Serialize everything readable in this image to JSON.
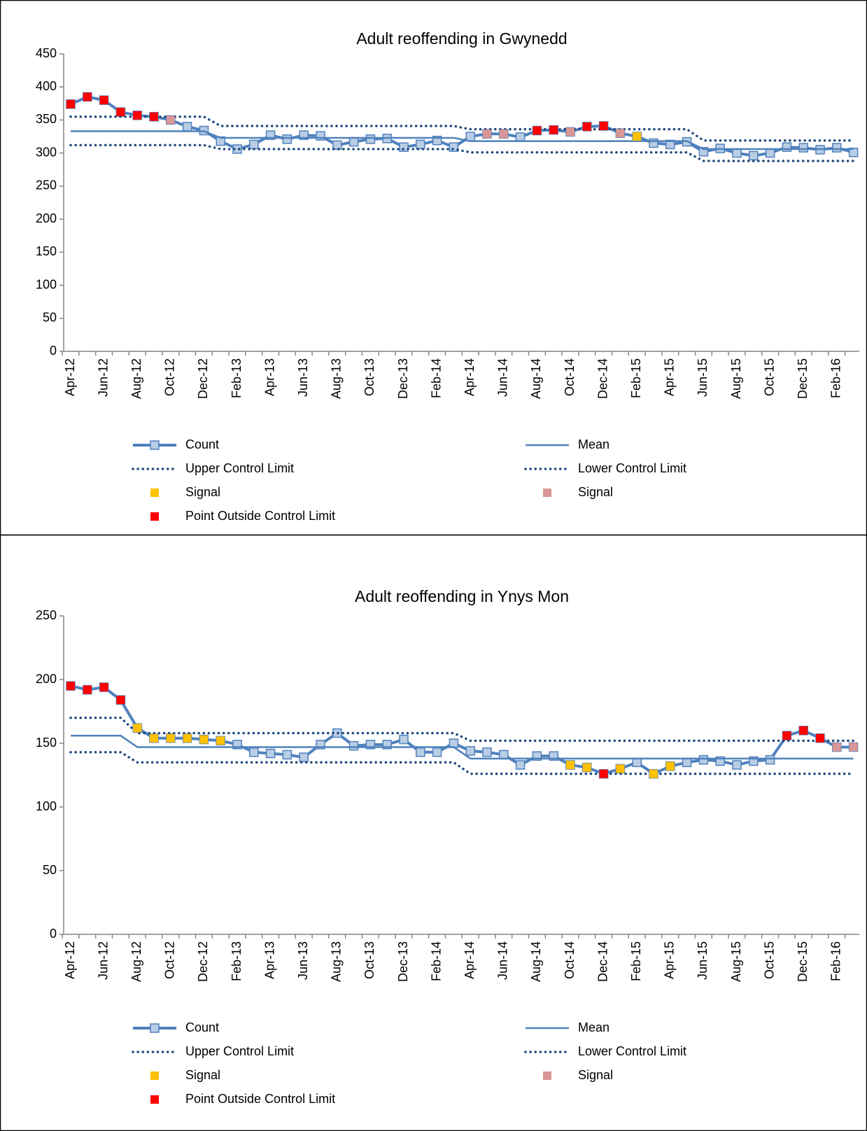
{
  "chart_data": [
    {
      "type": "line",
      "title": "Adult reoffending in Gwynedd",
      "categories": [
        "Apr-12",
        null,
        "Jun-12",
        null,
        "Aug-12",
        null,
        "Oct-12",
        null,
        "Dec-12",
        null,
        "Feb-13",
        null,
        "Apr-13",
        null,
        "Jun-13",
        null,
        "Aug-13",
        null,
        "Oct-13",
        null,
        "Dec-13",
        null,
        "Feb-14",
        null,
        "Apr-14",
        null,
        "Jun-14",
        null,
        "Aug-14",
        null,
        "Oct-14",
        null,
        "Dec-14",
        null,
        "Feb-15",
        null,
        "Apr-15",
        null,
        "Jun-15",
        null,
        "Aug-15",
        null,
        "Oct-15",
        null,
        "Dec-15",
        null,
        "Feb-16",
        null
      ],
      "ylim": [
        0,
        450
      ],
      "yticks": [
        0,
        50,
        100,
        150,
        200,
        250,
        300,
        350,
        400,
        450
      ],
      "grid": false,
      "series": [
        {
          "name": "Count",
          "color": "#4f81bd",
          "marker_color": "#b9cde5",
          "line": "solid",
          "marker": true,
          "values": [
            374,
            385,
            380,
            362,
            357,
            355,
            350,
            340,
            334,
            318,
            306,
            313,
            327,
            321,
            327,
            326,
            312,
            317,
            321,
            322,
            309,
            313,
            319,
            309,
            325,
            329,
            329,
            324,
            334,
            335,
            332,
            340,
            341,
            330,
            325,
            315,
            313,
            317,
            302,
            307,
            300,
            296,
            300,
            309,
            308,
            305,
            308,
            301
          ]
        },
        {
          "name": "Mean",
          "color": "#4f81bd",
          "line": "solid",
          "marker": false,
          "values": [
            333,
            333,
            333,
            333,
            333,
            333,
            333,
            333,
            333,
            323,
            323,
            323,
            323,
            323,
            323,
            323,
            323,
            323,
            323,
            323,
            323,
            323,
            323,
            323,
            318,
            318,
            318,
            318,
            318,
            318,
            318,
            318,
            318,
            318,
            318,
            318,
            318,
            318,
            306,
            306,
            306,
            306,
            306,
            306,
            306,
            306,
            306,
            306
          ]
        },
        {
          "name": "Upper Control Limit",
          "color": "#1f497d",
          "line": "dotted",
          "marker": false,
          "values": [
            355,
            355,
            355,
            355,
            355,
            355,
            355,
            355,
            355,
            341,
            341,
            341,
            341,
            341,
            341,
            341,
            341,
            341,
            341,
            341,
            341,
            341,
            341,
            341,
            336,
            336,
            336,
            336,
            336,
            336,
            336,
            336,
            336,
            336,
            336,
            336,
            336,
            336,
            319,
            319,
            319,
            319,
            319,
            319,
            319,
            319,
            319,
            319
          ]
        },
        {
          "name": "Lower Control Limit",
          "color": "#1f497d",
          "line": "dotted",
          "marker": false,
          "values": [
            312,
            312,
            312,
            312,
            312,
            312,
            312,
            312,
            312,
            306,
            306,
            306,
            306,
            306,
            306,
            306,
            306,
            306,
            306,
            306,
            306,
            306,
            306,
            306,
            301,
            301,
            301,
            301,
            301,
            301,
            301,
            301,
            301,
            301,
            301,
            301,
            301,
            301,
            288,
            288,
            288,
            288,
            288,
            288,
            288,
            288,
            288,
            288
          ]
        },
        {
          "name": "Signal",
          "color": "#ffc000",
          "line": "none",
          "marker": true,
          "values": [
            null,
            null,
            null,
            null,
            null,
            null,
            null,
            null,
            null,
            null,
            null,
            null,
            null,
            null,
            null,
            null,
            null,
            null,
            null,
            null,
            null,
            null,
            null,
            null,
            null,
            null,
            null,
            null,
            null,
            null,
            null,
            null,
            null,
            null,
            325,
            null,
            null,
            null,
            null,
            null,
            null,
            null,
            null,
            null,
            null,
            null,
            null,
            null
          ]
        },
        {
          "name": "Signal",
          "color": "#d99694",
          "line": "none",
          "marker": true,
          "values": [
            null,
            null,
            null,
            null,
            null,
            null,
            350,
            null,
            null,
            null,
            null,
            null,
            null,
            null,
            null,
            null,
            null,
            null,
            null,
            null,
            null,
            null,
            null,
            null,
            null,
            329,
            329,
            null,
            null,
            null,
            332,
            null,
            null,
            330,
            null,
            null,
            null,
            null,
            null,
            null,
            null,
            null,
            null,
            null,
            null,
            null,
            null,
            null
          ]
        },
        {
          "name": "Point Outside Control Limit",
          "color": "#ff0000",
          "line": "none",
          "marker": true,
          "values": [
            374,
            385,
            380,
            362,
            357,
            355,
            null,
            null,
            null,
            null,
            null,
            null,
            null,
            null,
            null,
            null,
            null,
            null,
            null,
            null,
            null,
            null,
            null,
            null,
            null,
            null,
            null,
            null,
            334,
            335,
            null,
            340,
            341,
            null,
            null,
            null,
            null,
            null,
            null,
            null,
            null,
            null,
            null,
            null,
            null,
            null,
            null,
            null
          ]
        }
      ]
    },
    {
      "type": "line",
      "title": "Adult reoffending in Ynys Mon",
      "categories": [
        "Apr-12",
        null,
        "Jun-12",
        null,
        "Aug-12",
        null,
        "Oct-12",
        null,
        "Dec-12",
        null,
        "Feb-13",
        null,
        "Apr-13",
        null,
        "Jun-13",
        null,
        "Aug-13",
        null,
        "Oct-13",
        null,
        "Dec-13",
        null,
        "Feb-14",
        null,
        "Apr-14",
        null,
        "Jun-14",
        null,
        "Aug-14",
        null,
        "Oct-14",
        null,
        "Dec-14",
        null,
        "Feb-15",
        null,
        "Apr-15",
        null,
        "Jun-15",
        null,
        "Aug-15",
        null,
        "Oct-15",
        null,
        "Dec-15",
        null,
        "Feb-16",
        null
      ],
      "ylim": [
        0,
        250
      ],
      "yticks": [
        0,
        50,
        100,
        150,
        200,
        250
      ],
      "grid": false,
      "series": [
        {
          "name": "Count",
          "color": "#4f81bd",
          "marker_color": "#b9cde5",
          "line": "solid",
          "marker": true,
          "values": [
            195,
            192,
            194,
            184,
            162,
            154,
            154,
            154,
            153,
            152,
            149,
            143,
            142,
            141,
            139,
            149,
            158,
            148,
            149,
            149,
            153,
            143,
            143,
            150,
            144,
            143,
            141,
            133,
            140,
            140,
            133,
            131,
            126,
            130,
            135,
            126,
            132,
            135,
            137,
            136,
            133,
            136,
            137,
            156,
            160,
            154,
            147,
            147
          ]
        },
        {
          "name": "Mean",
          "color": "#4f81bd",
          "line": "solid",
          "marker": false,
          "values": [
            156,
            156,
            156,
            156,
            147,
            147,
            147,
            147,
            147,
            147,
            147,
            147,
            147,
            147,
            147,
            147,
            147,
            147,
            147,
            147,
            147,
            147,
            147,
            147,
            138,
            138,
            138,
            138,
            138,
            138,
            138,
            138,
            138,
            138,
            138,
            138,
            138,
            138,
            138,
            138,
            138,
            138,
            138,
            138,
            138,
            138,
            138,
            138
          ]
        },
        {
          "name": "Upper Control Limit",
          "color": "#1f497d",
          "line": "dotted",
          "marker": false,
          "values": [
            170,
            170,
            170,
            170,
            158,
            158,
            158,
            158,
            158,
            158,
            158,
            158,
            158,
            158,
            158,
            158,
            158,
            158,
            158,
            158,
            158,
            158,
            158,
            158,
            152,
            152,
            152,
            152,
            152,
            152,
            152,
            152,
            152,
            152,
            152,
            152,
            152,
            152,
            152,
            152,
            152,
            152,
            152,
            152,
            152,
            152,
            152,
            152
          ]
        },
        {
          "name": "Lower Control Limit",
          "color": "#1f497d",
          "line": "dotted",
          "marker": false,
          "values": [
            143,
            143,
            143,
            143,
            135,
            135,
            135,
            135,
            135,
            135,
            135,
            135,
            135,
            135,
            135,
            135,
            135,
            135,
            135,
            135,
            135,
            135,
            135,
            135,
            126,
            126,
            126,
            126,
            126,
            126,
            126,
            126,
            126,
            126,
            126,
            126,
            126,
            126,
            126,
            126,
            126,
            126,
            126,
            126,
            126,
            126,
            126,
            126
          ]
        },
        {
          "name": "Signal",
          "color": "#ffc000",
          "line": "none",
          "marker": true,
          "values": [
            null,
            null,
            null,
            null,
            162,
            154,
            154,
            154,
            153,
            152,
            null,
            null,
            null,
            null,
            null,
            null,
            null,
            null,
            null,
            null,
            null,
            null,
            null,
            null,
            null,
            null,
            null,
            null,
            null,
            null,
            133,
            131,
            null,
            130,
            null,
            126,
            132,
            null,
            null,
            null,
            null,
            null,
            null,
            null,
            null,
            null,
            null,
            null
          ]
        },
        {
          "name": "Signal",
          "color": "#d99694",
          "line": "none",
          "marker": true,
          "values": [
            null,
            null,
            null,
            null,
            null,
            null,
            null,
            null,
            null,
            null,
            null,
            null,
            null,
            null,
            null,
            null,
            null,
            null,
            null,
            null,
            null,
            null,
            null,
            null,
            null,
            null,
            null,
            null,
            null,
            null,
            null,
            null,
            null,
            null,
            null,
            null,
            null,
            null,
            null,
            null,
            null,
            null,
            null,
            null,
            null,
            null,
            147,
            147
          ]
        },
        {
          "name": "Point Outside Control Limit",
          "color": "#ff0000",
          "line": "none",
          "marker": true,
          "values": [
            195,
            192,
            194,
            184,
            null,
            null,
            null,
            null,
            null,
            null,
            null,
            null,
            null,
            null,
            null,
            null,
            null,
            null,
            null,
            null,
            null,
            null,
            null,
            null,
            null,
            null,
            null,
            null,
            null,
            null,
            null,
            null,
            126,
            null,
            null,
            null,
            null,
            null,
            null,
            null,
            null,
            null,
            null,
            156,
            160,
            154,
            null,
            null
          ]
        }
      ]
    }
  ]
}
